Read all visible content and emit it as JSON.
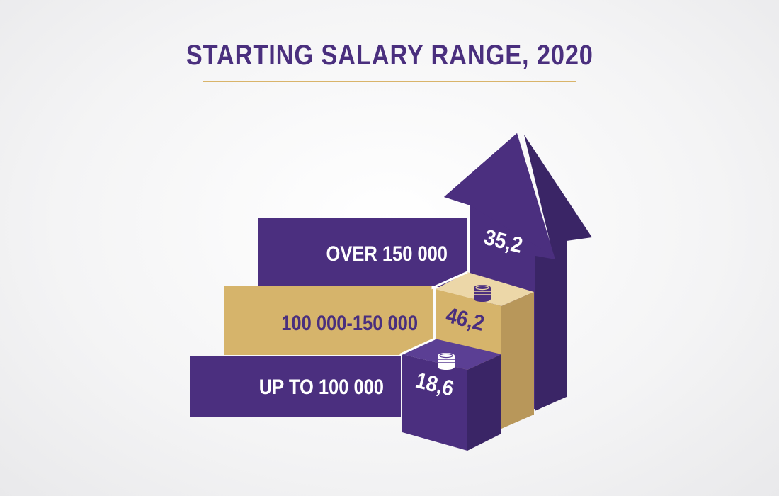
{
  "chart_data": {
    "type": "bar",
    "title": "STARTING SALARY RANGE, 2020",
    "categories": [
      "UP TO 100 000",
      "100 000-150 000",
      "OVER 150 000"
    ],
    "values": [
      18.6,
      46.2,
      35.2
    ],
    "value_labels": [
      "18,6",
      "46,2",
      "35,2"
    ],
    "colors": {
      "purple": "#4b2f7f",
      "purple_dark": "#3a2566",
      "purple_light": "#5b3f94",
      "gold": "#d6b46b",
      "gold_dark": "#b8975a",
      "gold_light": "#ecd7a8",
      "label_dark": "#4a2f7e",
      "label_light": "#ffffff"
    },
    "icons": [
      "coins-stack-icon",
      "coins-stack-icon"
    ]
  }
}
